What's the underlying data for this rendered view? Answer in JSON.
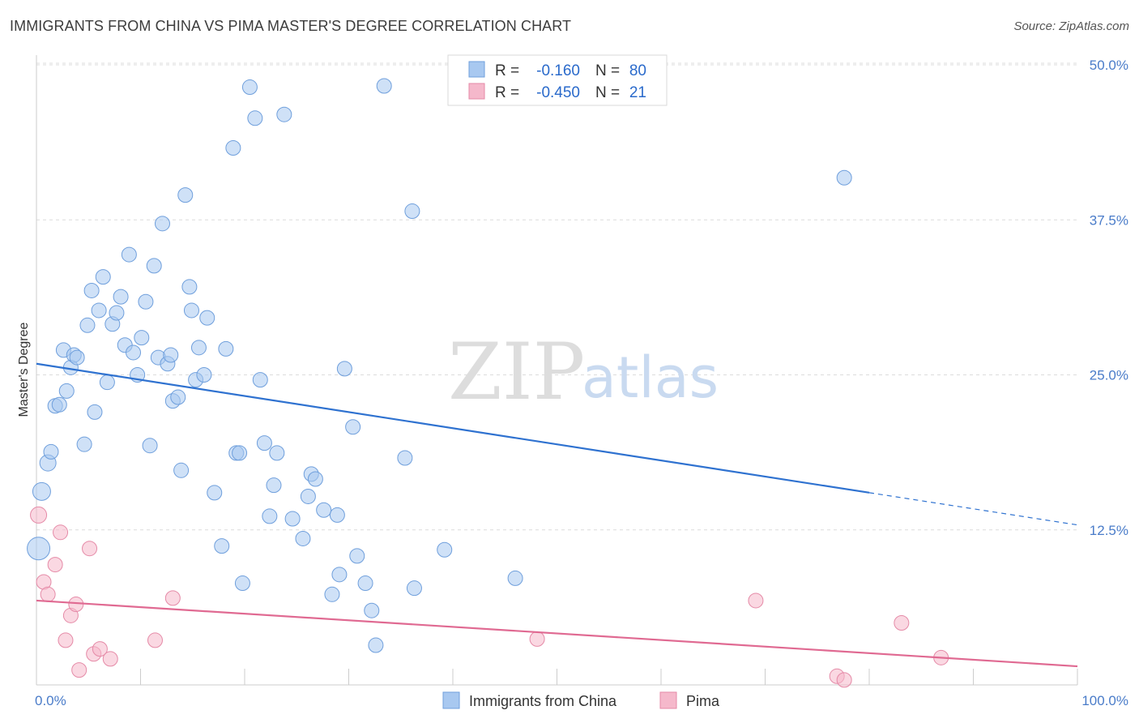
{
  "title": "IMMIGRANTS FROM CHINA VS PIMA MASTER'S DEGREE CORRELATION CHART",
  "source": "Source: ZipAtlas.com",
  "watermark": {
    "zip": "ZIP",
    "atlas": "atlas"
  },
  "stats": [
    {
      "r_label": "R =",
      "r_value": "-0.160",
      "n_label": "N =",
      "n_value": "80",
      "color": "#a8c8f0",
      "stroke": "#6f9fdc"
    },
    {
      "r_label": "R =",
      "r_value": "-0.450",
      "n_label": "N =",
      "n_value": "21",
      "color": "#f5b8cb",
      "stroke": "#e58aa7"
    }
  ],
  "legend": [
    {
      "label": "Immigrants from China",
      "color": "#a8c8f0",
      "stroke": "#6f9fdc"
    },
    {
      "label": "Pima",
      "color": "#f5b8cb",
      "stroke": "#e58aa7"
    }
  ],
  "chart_data": {
    "type": "scatter",
    "ylabel": "Master's Degree",
    "xlim": [
      0,
      100
    ],
    "ylim": [
      0,
      50
    ],
    "x_tick_labels": [
      {
        "value": 0,
        "label": "0.0%"
      },
      {
        "value": 100,
        "label": "100.0%"
      }
    ],
    "y_tick_labels": [
      {
        "value": 12.5,
        "label": "12.5%"
      },
      {
        "value": 25,
        "label": "25.0%"
      },
      {
        "value": 37.5,
        "label": "37.5%"
      },
      {
        "value": 50,
        "label": "50.0%"
      }
    ],
    "grid": true,
    "legend_position": "bottom-center",
    "series": [
      {
        "name": "Immigrants from China",
        "color": "#a8c8f0",
        "stroke": "#6f9fdc",
        "line_color": "#2f72d0",
        "trend": {
          "x0": 0,
          "y0": 25.9,
          "x1": 80,
          "y1": 15.5,
          "dash_to_x": 100,
          "dash_to_y": 12.9
        },
        "points": [
          [
            0.2,
            11.0,
            14
          ],
          [
            0.5,
            15.6,
            11
          ],
          [
            1.1,
            17.9,
            10
          ],
          [
            1.4,
            18.8,
            9
          ],
          [
            1.8,
            22.5,
            9
          ],
          [
            2.2,
            22.6,
            9
          ],
          [
            2.6,
            27.0,
            9
          ],
          [
            2.9,
            23.7,
            9
          ],
          [
            3.3,
            25.6,
            9
          ],
          [
            3.6,
            26.6,
            9
          ],
          [
            3.9,
            26.4,
            9
          ],
          [
            4.6,
            19.4,
            9
          ],
          [
            4.9,
            29.0,
            9
          ],
          [
            5.3,
            31.8,
            9
          ],
          [
            5.6,
            22.0,
            9
          ],
          [
            6.0,
            30.2,
            9
          ],
          [
            6.4,
            32.9,
            9
          ],
          [
            6.8,
            24.4,
            9
          ],
          [
            7.3,
            29.1,
            9
          ],
          [
            7.7,
            30.0,
            9
          ],
          [
            8.1,
            31.3,
            9
          ],
          [
            8.5,
            27.4,
            9
          ],
          [
            8.9,
            34.7,
            9
          ],
          [
            9.3,
            26.8,
            9
          ],
          [
            9.7,
            25.0,
            9
          ],
          [
            10.1,
            28.0,
            9
          ],
          [
            10.5,
            30.9,
            9
          ],
          [
            10.9,
            19.3,
            9
          ],
          [
            11.3,
            33.8,
            9
          ],
          [
            11.7,
            26.4,
            9
          ],
          [
            12.1,
            37.2,
            9
          ],
          [
            12.6,
            25.9,
            9
          ],
          [
            12.9,
            26.6,
            9
          ],
          [
            13.1,
            22.9,
            9
          ],
          [
            13.6,
            23.2,
            9
          ],
          [
            13.9,
            17.3,
            9
          ],
          [
            14.3,
            39.5,
            9
          ],
          [
            14.7,
            32.1,
            9
          ],
          [
            14.9,
            30.2,
            9
          ],
          [
            15.3,
            24.6,
            9
          ],
          [
            15.6,
            27.2,
            9
          ],
          [
            16.1,
            25.0,
            9
          ],
          [
            16.4,
            29.6,
            9
          ],
          [
            17.1,
            15.5,
            9
          ],
          [
            17.8,
            11.2,
            9
          ],
          [
            18.2,
            27.1,
            9
          ],
          [
            18.9,
            43.3,
            9
          ],
          [
            19.2,
            18.7,
            9
          ],
          [
            19.5,
            18.7,
            9
          ],
          [
            19.8,
            8.2,
            9
          ],
          [
            20.5,
            48.2,
            9
          ],
          [
            21.0,
            45.7,
            9
          ],
          [
            21.5,
            24.6,
            9
          ],
          [
            21.9,
            19.5,
            9
          ],
          [
            22.4,
            13.6,
            9
          ],
          [
            22.8,
            16.1,
            9
          ],
          [
            23.1,
            18.7,
            9
          ],
          [
            23.8,
            46.0,
            9
          ],
          [
            24.6,
            13.4,
            9
          ],
          [
            25.6,
            11.8,
            9
          ],
          [
            26.1,
            15.2,
            9
          ],
          [
            26.4,
            17.0,
            9
          ],
          [
            26.8,
            16.6,
            9
          ],
          [
            27.6,
            14.1,
            9
          ],
          [
            28.4,
            7.3,
            9
          ],
          [
            28.9,
            13.7,
            9
          ],
          [
            29.1,
            8.9,
            9
          ],
          [
            29.6,
            25.5,
            9
          ],
          [
            30.4,
            20.8,
            9
          ],
          [
            30.8,
            10.4,
            9
          ],
          [
            31.6,
            8.2,
            9
          ],
          [
            32.2,
            6.0,
            9
          ],
          [
            32.6,
            3.2,
            9
          ],
          [
            33.4,
            48.3,
            9
          ],
          [
            35.4,
            18.3,
            9
          ],
          [
            36.1,
            38.2,
            9
          ],
          [
            36.3,
            7.8,
            9
          ],
          [
            39.2,
            10.9,
            9
          ],
          [
            46.0,
            8.6,
            9
          ],
          [
            77.6,
            40.9,
            9
          ]
        ]
      },
      {
        "name": "Pima",
        "color": "#f5b8cb",
        "stroke": "#e58aa7",
        "line_color": "#e06a92",
        "trend": {
          "x0": 0,
          "y0": 6.8,
          "x1": 100,
          "y1": 1.5
        },
        "points": [
          [
            0.2,
            13.7,
            10
          ],
          [
            0.7,
            8.3,
            9
          ],
          [
            1.1,
            7.3,
            9
          ],
          [
            1.8,
            9.7,
            9
          ],
          [
            2.3,
            12.3,
            9
          ],
          [
            2.8,
            3.6,
            9
          ],
          [
            3.3,
            5.6,
            9
          ],
          [
            3.8,
            6.5,
            9
          ],
          [
            4.1,
            1.2,
            9
          ],
          [
            5.1,
            11.0,
            9
          ],
          [
            5.5,
            2.5,
            9
          ],
          [
            6.1,
            2.9,
            9
          ],
          [
            7.1,
            2.1,
            9
          ],
          [
            11.4,
            3.6,
            9
          ],
          [
            13.1,
            7.0,
            9
          ],
          [
            48.1,
            3.7,
            9
          ],
          [
            69.1,
            6.8,
            9
          ],
          [
            76.9,
            0.7,
            9
          ],
          [
            77.6,
            0.4,
            9
          ],
          [
            83.1,
            5.0,
            9
          ],
          [
            86.9,
            2.2,
            9
          ]
        ]
      }
    ]
  }
}
